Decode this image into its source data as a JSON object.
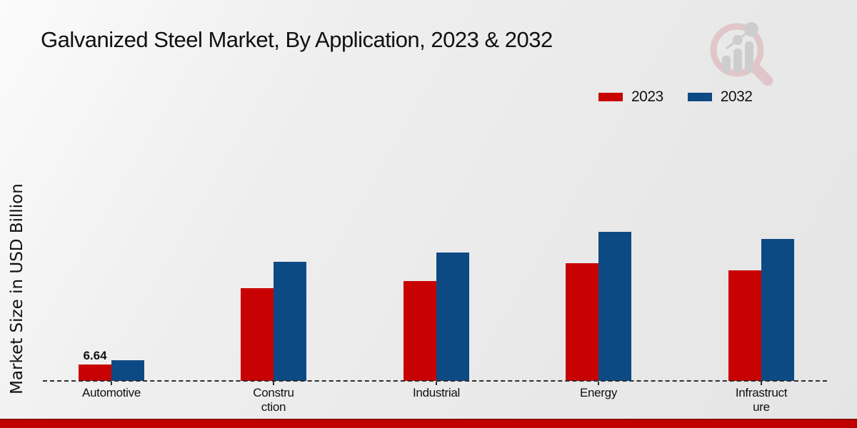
{
  "title": "Galvanized Steel Market, By Application, 2023 & 2032",
  "ylabel": "Market Size in USD Billion",
  "legend": {
    "position": "top-right",
    "items": [
      {
        "label": "2023",
        "color": "#c80202"
      },
      {
        "label": "2032",
        "color": "#0d4a84"
      }
    ]
  },
  "watermark_icon": "magnifier-bar-chart-logo",
  "footer": {
    "strip_color": "#c00000"
  },
  "chart_data": {
    "type": "bar",
    "title": "Galvanized Steel Market, By Application, 2023 & 2032",
    "xlabel": "",
    "ylabel": "Market Size in USD Billion",
    "categories": [
      "Automotive",
      "Construction",
      "Industrial",
      "Energy",
      "Infrastructure"
    ],
    "category_label_lines": [
      [
        "Automotive"
      ],
      [
        "Constru",
        "ction"
      ],
      [
        "Industrial"
      ],
      [
        "Energy"
      ],
      [
        "Infrastruct",
        "ure"
      ]
    ],
    "series": [
      {
        "name": "2023",
        "color": "#c80202",
        "values": [
          6.64,
          37.5,
          40.4,
          47.6,
          44.8
        ]
      },
      {
        "name": "2032",
        "color": "#0d4a84",
        "values": [
          8.4,
          48.2,
          52.0,
          60.3,
          57.5
        ]
      }
    ],
    "value_labels": [
      {
        "series_index": 0,
        "category_index": 0,
        "text": "6.64"
      }
    ],
    "ylim": [
      0,
      65
    ],
    "grid": false,
    "y_axis_ticks_visible": false,
    "baseline_style": "dashed",
    "legend_position": "top-right"
  }
}
